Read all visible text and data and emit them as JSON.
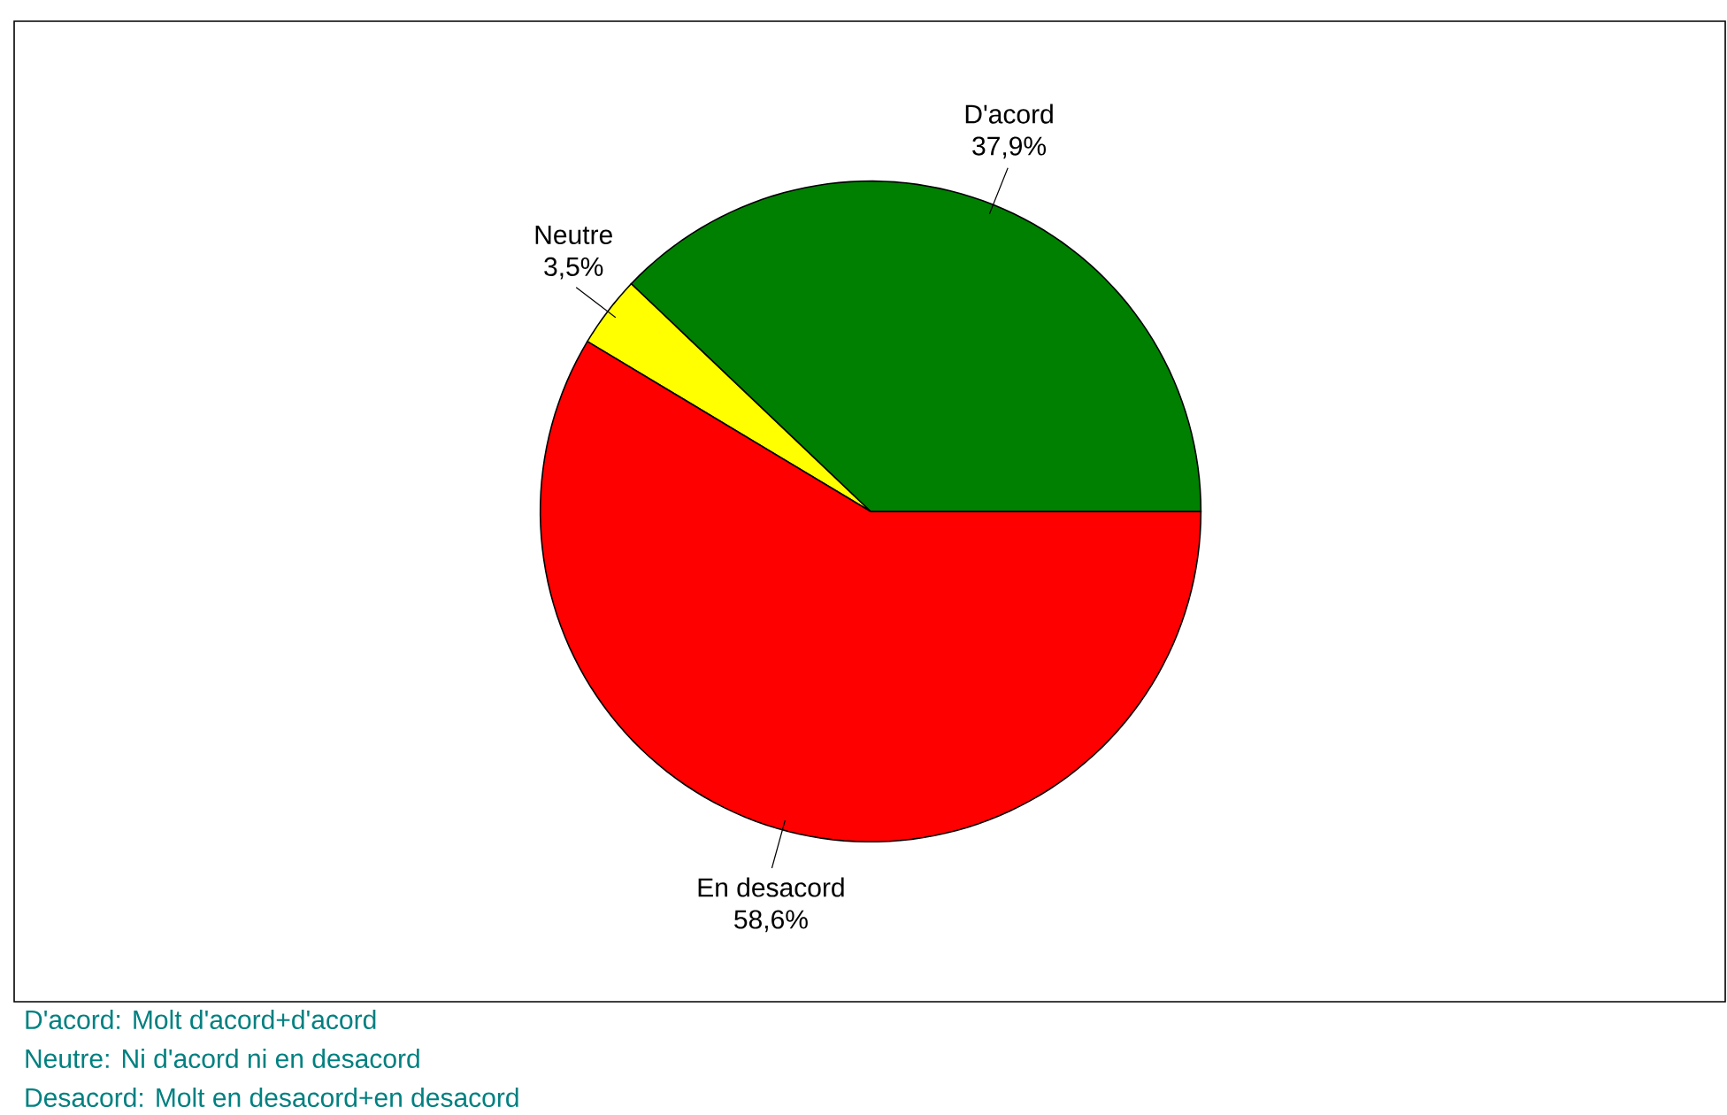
{
  "chart_data": {
    "type": "pie",
    "categories": [
      "D'acord",
      "Neutre",
      "En desacord"
    ],
    "values": [
      37.9,
      3.5,
      58.6
    ],
    "colors": [
      "#008000",
      "#ffff00",
      "#ff0000"
    ],
    "value_labels": [
      "37,9%",
      "3,5%",
      "58,6%"
    ],
    "annotations": [
      "D'acord: Molt d'acord+d'acord",
      "Neutre: Ni d'acord ni en desacord",
      "Desacord: Molt en desacord+en desacord"
    ]
  }
}
